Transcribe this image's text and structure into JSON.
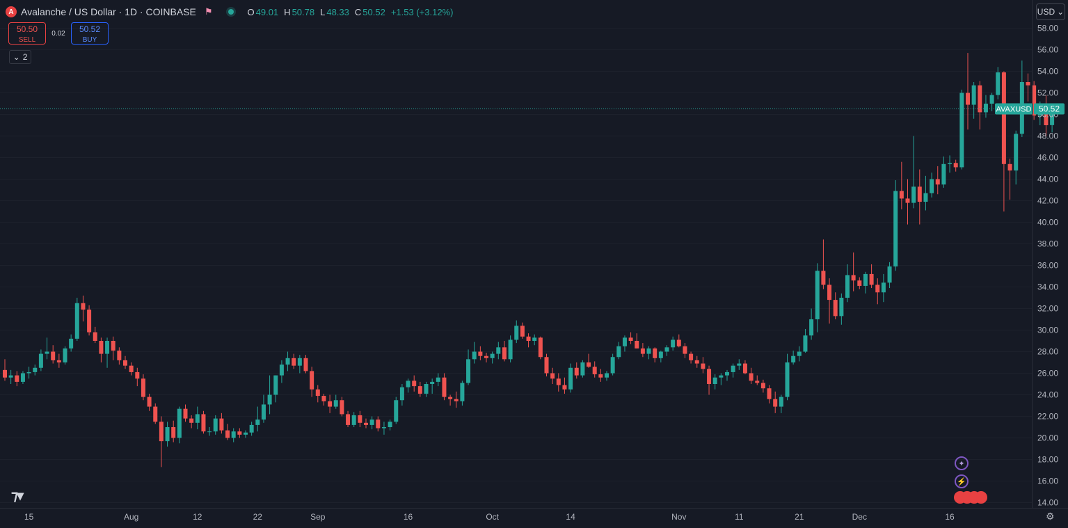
{
  "header": {
    "symbol_badge": "A",
    "title": "Avalanche / US Dollar · 1D · COINBASE",
    "ohlc": [
      {
        "key": "O",
        "value": "49.01"
      },
      {
        "key": "H",
        "value": "50.78"
      },
      {
        "key": "L",
        "value": "48.33"
      },
      {
        "key": "C",
        "value": "50.52"
      }
    ],
    "change": "+1.53 (+3.12%)"
  },
  "trade": {
    "sell_price": "50.50",
    "sell_label": "SELL",
    "spread": "0.02",
    "buy_price": "50.52",
    "buy_label": "BUY"
  },
  "indicators_count": "2",
  "currency": "USD",
  "colors": {
    "up": "#26a69a",
    "down": "#ef5350",
    "background": "#161a25",
    "grid": "#2a2e39"
  },
  "chart_data": {
    "type": "candlestick",
    "symbol": "AVAXUSD",
    "last_price": "50.52",
    "y_ticks": [
      14,
      16,
      18,
      20,
      22,
      24,
      26,
      28,
      30,
      32,
      34,
      36,
      38,
      40,
      42,
      44,
      46,
      48,
      50,
      52,
      54,
      56,
      58
    ],
    "x_ticks": [
      {
        "label": "15",
        "index": 4
      },
      {
        "label": "Aug",
        "index": 21
      },
      {
        "label": "12",
        "index": 32
      },
      {
        "label": "22",
        "index": 42
      },
      {
        "label": "Sep",
        "index": 52
      },
      {
        "label": "16",
        "index": 67
      },
      {
        "label": "Oct",
        "index": 81
      },
      {
        "label": "14",
        "index": 94
      },
      {
        "label": "Nov",
        "index": 112
      },
      {
        "label": "11",
        "index": 122
      },
      {
        "label": "21",
        "index": 132
      },
      {
        "label": "Dec",
        "index": 142
      },
      {
        "label": "16",
        "index": 157
      }
    ],
    "ohlc": [
      [
        26.3,
        27.3,
        25.3,
        25.6
      ],
      [
        25.6,
        26.3,
        25.0,
        25.8
      ],
      [
        25.8,
        26.2,
        24.8,
        25.2
      ],
      [
        25.2,
        26.2,
        25.0,
        26.0
      ],
      [
        26.0,
        26.6,
        25.5,
        26.1
      ],
      [
        26.1,
        26.8,
        25.8,
        26.5
      ],
      [
        26.5,
        28.2,
        26.2,
        27.8
      ],
      [
        27.8,
        29.3,
        27.3,
        28.0
      ],
      [
        28.0,
        28.6,
        26.9,
        27.2
      ],
      [
        27.2,
        27.8,
        26.5,
        27.0
      ],
      [
        27.0,
        28.5,
        26.8,
        28.3
      ],
      [
        28.3,
        29.6,
        28.0,
        29.2
      ],
      [
        29.2,
        33.0,
        29.0,
        32.5
      ],
      [
        32.5,
        33.2,
        30.8,
        31.9
      ],
      [
        31.9,
        32.3,
        29.5,
        29.8
      ],
      [
        29.8,
        30.3,
        28.8,
        29.0
      ],
      [
        29.0,
        29.3,
        27.0,
        27.8
      ],
      [
        27.8,
        29.3,
        26.5,
        29.0
      ],
      [
        29.0,
        29.4,
        27.2,
        28.1
      ],
      [
        28.1,
        28.4,
        26.8,
        27.2
      ],
      [
        27.2,
        27.6,
        26.4,
        26.7
      ],
      [
        26.7,
        27.0,
        25.8,
        26.1
      ],
      [
        26.1,
        26.5,
        24.8,
        25.5
      ],
      [
        25.5,
        25.9,
        23.5,
        23.8
      ],
      [
        23.8,
        24.1,
        22.5,
        22.9
      ],
      [
        22.9,
        23.2,
        21.3,
        21.5
      ],
      [
        21.5,
        22.0,
        17.3,
        19.7
      ],
      [
        19.7,
        21.5,
        19.2,
        21.0
      ],
      [
        21.0,
        21.6,
        19.6,
        20.0
      ],
      [
        20.0,
        22.9,
        19.5,
        22.7
      ],
      [
        22.7,
        23.1,
        21.5,
        21.8
      ],
      [
        21.8,
        22.1,
        20.9,
        21.4
      ],
      [
        21.4,
        22.9,
        20.8,
        22.2
      ],
      [
        22.2,
        22.5,
        20.4,
        20.6
      ],
      [
        20.6,
        21.0,
        20.2,
        20.6
      ],
      [
        20.6,
        22.1,
        20.3,
        21.8
      ],
      [
        21.8,
        22.3,
        20.4,
        20.7
      ],
      [
        20.7,
        21.3,
        19.8,
        20.0
      ],
      [
        20.0,
        20.9,
        19.6,
        20.6
      ],
      [
        20.6,
        20.9,
        20.0,
        20.3
      ],
      [
        20.3,
        20.7,
        20.0,
        20.5
      ],
      [
        20.5,
        21.5,
        20.2,
        21.2
      ],
      [
        21.2,
        22.9,
        20.6,
        21.7
      ],
      [
        21.7,
        24.0,
        21.4,
        23.1
      ],
      [
        23.1,
        25.8,
        22.2,
        24.0
      ],
      [
        24.0,
        25.8,
        23.3,
        25.8
      ],
      [
        25.8,
        27.2,
        25.1,
        26.8
      ],
      [
        26.8,
        28.0,
        26.2,
        27.4
      ],
      [
        27.4,
        27.8,
        26.4,
        26.7
      ],
      [
        26.7,
        27.7,
        26.0,
        27.4
      ],
      [
        27.4,
        27.7,
        26.0,
        26.2
      ],
      [
        26.2,
        26.6,
        23.8,
        24.5
      ],
      [
        24.5,
        24.9,
        23.3,
        23.9
      ],
      [
        23.9,
        24.1,
        23.0,
        23.4
      ],
      [
        23.4,
        24.0,
        22.3,
        22.9
      ],
      [
        22.9,
        24.0,
        22.7,
        23.5
      ],
      [
        23.5,
        23.8,
        22.0,
        22.2
      ],
      [
        22.2,
        22.5,
        21.0,
        21.2
      ],
      [
        21.2,
        22.4,
        21.0,
        22.1
      ],
      [
        22.1,
        22.5,
        21.0,
        21.4
      ],
      [
        21.4,
        21.8,
        20.9,
        21.2
      ],
      [
        21.2,
        22.0,
        20.8,
        21.7
      ],
      [
        21.7,
        22.0,
        20.6,
        20.9
      ],
      [
        20.9,
        21.5,
        20.3,
        21.0
      ],
      [
        21.0,
        21.7,
        20.7,
        21.5
      ],
      [
        21.5,
        23.8,
        21.3,
        23.5
      ],
      [
        23.5,
        25.0,
        23.0,
        24.7
      ],
      [
        24.7,
        25.5,
        24.2,
        25.3
      ],
      [
        25.3,
        25.8,
        24.3,
        24.8
      ],
      [
        24.8,
        25.2,
        23.8,
        24.1
      ],
      [
        24.1,
        25.2,
        23.8,
        25.0
      ],
      [
        25.0,
        25.5,
        24.1,
        25.2
      ],
      [
        25.2,
        26.0,
        24.8,
        25.6
      ],
      [
        25.6,
        26.0,
        23.5,
        23.8
      ],
      [
        23.8,
        24.0,
        23.0,
        23.6
      ],
      [
        23.6,
        24.3,
        22.8,
        23.4
      ],
      [
        23.4,
        25.3,
        23.0,
        25.1
      ],
      [
        25.1,
        28.2,
        24.9,
        27.3
      ],
      [
        27.3,
        28.9,
        26.9,
        28.0
      ],
      [
        28.0,
        28.5,
        27.2,
        27.6
      ],
      [
        27.6,
        27.9,
        27.0,
        27.4
      ],
      [
        27.4,
        28.0,
        26.9,
        27.8
      ],
      [
        27.8,
        28.9,
        27.3,
        28.4
      ],
      [
        28.4,
        29.0,
        27.1,
        27.3
      ],
      [
        27.3,
        29.5,
        27.0,
        29.1
      ],
      [
        29.1,
        30.9,
        28.8,
        30.4
      ],
      [
        30.4,
        30.7,
        29.2,
        29.4
      ],
      [
        29.4,
        29.7,
        28.4,
        29.0
      ],
      [
        29.0,
        29.6,
        28.6,
        29.3
      ],
      [
        29.3,
        29.4,
        27.3,
        27.5
      ],
      [
        27.5,
        27.8,
        25.7,
        26.0
      ],
      [
        26.0,
        26.5,
        25.0,
        25.5
      ],
      [
        25.5,
        26.0,
        24.3,
        24.9
      ],
      [
        24.9,
        25.6,
        24.1,
        24.5
      ],
      [
        24.5,
        26.9,
        24.2,
        26.5
      ],
      [
        26.5,
        27.0,
        25.5,
        25.8
      ],
      [
        25.8,
        27.2,
        25.6,
        27.0
      ],
      [
        27.0,
        27.8,
        26.5,
        26.6
      ],
      [
        26.6,
        27.1,
        25.6,
        25.9
      ],
      [
        25.9,
        26.4,
        25.2,
        25.6
      ],
      [
        25.6,
        26.2,
        25.3,
        26.0
      ],
      [
        26.0,
        27.8,
        25.8,
        27.5
      ],
      [
        27.5,
        28.9,
        27.3,
        28.5
      ],
      [
        28.5,
        29.5,
        28.0,
        29.3
      ],
      [
        29.3,
        29.8,
        28.7,
        29.0
      ],
      [
        29.0,
        29.7,
        28.3,
        28.3
      ],
      [
        28.3,
        28.8,
        27.5,
        27.8
      ],
      [
        27.8,
        28.5,
        27.3,
        28.3
      ],
      [
        28.3,
        28.4,
        27.0,
        27.4
      ],
      [
        27.4,
        28.1,
        27.0,
        28.0
      ],
      [
        28.0,
        28.6,
        27.6,
        28.4
      ],
      [
        28.4,
        29.4,
        28.1,
        29.1
      ],
      [
        29.1,
        29.6,
        28.4,
        28.5
      ],
      [
        28.5,
        28.8,
        27.4,
        27.8
      ],
      [
        27.8,
        28.0,
        26.9,
        27.2
      ],
      [
        27.2,
        27.6,
        26.5,
        26.9
      ],
      [
        26.9,
        27.5,
        26.0,
        26.4
      ],
      [
        26.4,
        26.7,
        24.0,
        25.0
      ],
      [
        25.0,
        25.9,
        24.5,
        25.6
      ],
      [
        25.6,
        26.0,
        24.9,
        25.8
      ],
      [
        25.8,
        26.3,
        25.3,
        26.1
      ],
      [
        26.1,
        26.9,
        25.6,
        26.7
      ],
      [
        26.7,
        27.3,
        26.3,
        26.9
      ],
      [
        26.9,
        27.2,
        25.9,
        26.0
      ],
      [
        26.0,
        26.5,
        25.0,
        25.3
      ],
      [
        25.3,
        25.8,
        24.9,
        25.1
      ],
      [
        25.1,
        25.4,
        24.2,
        24.6
      ],
      [
        24.6,
        24.9,
        23.2,
        23.6
      ],
      [
        23.6,
        24.3,
        22.3,
        22.9
      ],
      [
        22.9,
        24.0,
        22.3,
        23.8
      ],
      [
        23.8,
        27.8,
        23.5,
        27.0
      ],
      [
        27.0,
        28.1,
        26.8,
        27.6
      ],
      [
        27.6,
        28.5,
        27.1,
        28.0
      ],
      [
        28.0,
        30.1,
        27.9,
        29.5
      ],
      [
        29.5,
        32.0,
        29.1,
        31.0
      ],
      [
        31.0,
        36.2,
        29.8,
        35.5
      ],
      [
        35.5,
        38.4,
        33.8,
        34.2
      ],
      [
        34.2,
        34.8,
        30.6,
        32.8
      ],
      [
        32.8,
        33.5,
        31.0,
        31.3
      ],
      [
        31.3,
        33.4,
        30.5,
        33.0
      ],
      [
        33.0,
        36.1,
        32.6,
        35.1
      ],
      [
        35.1,
        37.2,
        33.6,
        34.6
      ],
      [
        34.6,
        34.9,
        33.8,
        34.1
      ],
      [
        34.1,
        35.4,
        33.4,
        35.2
      ],
      [
        35.2,
        36.1,
        33.9,
        34.2
      ],
      [
        34.2,
        34.8,
        32.4,
        33.5
      ],
      [
        33.5,
        35.2,
        32.6,
        34.4
      ],
      [
        34.4,
        36.3,
        33.9,
        35.9
      ],
      [
        35.9,
        43.9,
        35.5,
        42.9
      ],
      [
        42.9,
        45.6,
        41.2,
        42.2
      ],
      [
        42.2,
        44.0,
        39.8,
        41.8
      ],
      [
        41.8,
        48.0,
        41.3,
        43.3
      ],
      [
        43.3,
        44.9,
        39.8,
        41.9
      ],
      [
        41.9,
        44.3,
        41.1,
        42.7
      ],
      [
        42.7,
        44.6,
        42.3,
        44.0
      ],
      [
        44.0,
        45.2,
        42.6,
        43.5
      ],
      [
        43.5,
        46.1,
        43.2,
        45.4
      ],
      [
        45.4,
        46.2,
        44.6,
        45.5
      ],
      [
        45.5,
        45.8,
        44.7,
        45.1
      ],
      [
        45.1,
        52.3,
        44.9,
        52.0
      ],
      [
        52.0,
        55.7,
        48.6,
        50.9
      ],
      [
        50.9,
        53.0,
        49.6,
        52.7
      ],
      [
        52.7,
        53.1,
        48.6,
        50.2
      ],
      [
        50.2,
        51.8,
        49.7,
        51.0
      ],
      [
        51.0,
        52.0,
        50.3,
        51.8
      ],
      [
        51.8,
        54.4,
        51.4,
        53.9
      ],
      [
        53.9,
        54.0,
        41.0,
        45.4
      ],
      [
        45.4,
        45.9,
        42.1,
        44.8
      ],
      [
        44.8,
        48.5,
        43.5,
        48.2
      ],
      [
        48.2,
        55.0,
        47.9,
        53.0
      ],
      [
        53.0,
        53.8,
        51.2,
        52.7
      ],
      [
        52.7,
        53.1,
        49.5,
        49.9
      ],
      [
        49.9,
        51.2,
        49.0,
        50.7
      ],
      [
        50.7,
        51.8,
        48.0,
        49.0
      ],
      [
        49.01,
        50.78,
        48.33,
        50.52
      ]
    ]
  }
}
